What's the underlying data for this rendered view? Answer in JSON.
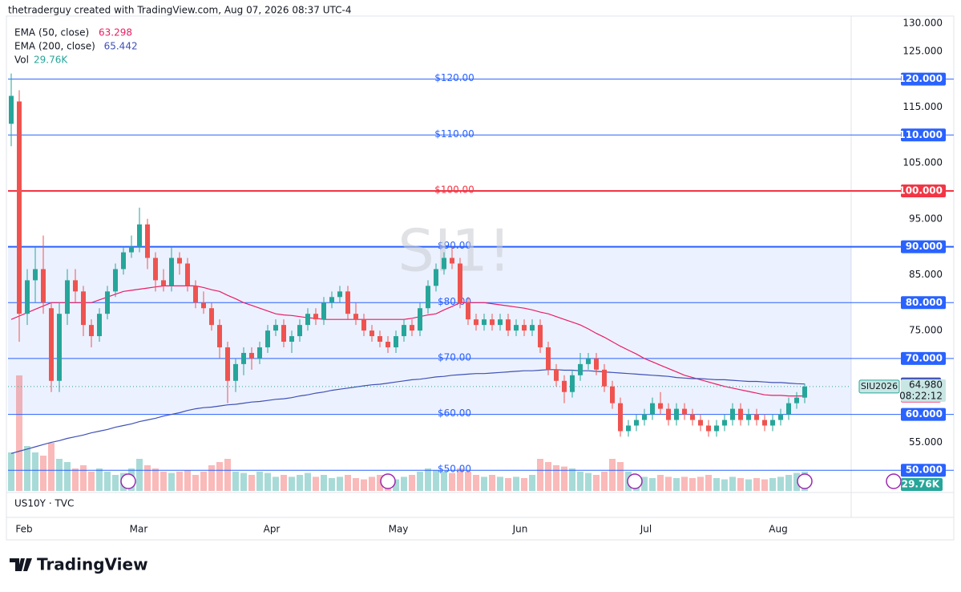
{
  "chart_data": {
    "type": "candlestick",
    "header": "thetraderguy created with TradingView.com, Aug 07, 2026 08:37 UTC-4",
    "title": "SI1!",
    "symbol": "SIU2026",
    "last_price_label": "64.980",
    "countdown": "08:22:12",
    "subpane": "US10Y · TVC",
    "brand": "TradingView",
    "up_color": "#26a69a",
    "down_color": "#ef5350",
    "ylim": [
      46.3,
      131
    ],
    "yticks": [
      {
        "value": 130,
        "label": "130.000"
      },
      {
        "value": 125,
        "label": "125.000"
      },
      {
        "value": 115,
        "label": "115.000"
      },
      {
        "value": 105,
        "label": "105.000"
      },
      {
        "value": 95,
        "label": "95.000"
      },
      {
        "value": 85,
        "label": "85.000"
      },
      {
        "value": 75,
        "label": "75.000"
      },
      {
        "value": 55,
        "label": "55.000"
      }
    ],
    "zone": [
      60,
      90
    ],
    "levels": [
      {
        "value": 120,
        "label": "$120.00",
        "axis_label": "120.000",
        "color": "#2962ff"
      },
      {
        "value": 110,
        "label": "$110.00",
        "axis_label": "110.000",
        "color": "#2962ff"
      },
      {
        "value": 100,
        "label": "$100.00",
        "axis_label": "100.000",
        "color": "#f23645"
      },
      {
        "value": 90,
        "label": "$90.00",
        "axis_label": "90.000",
        "color": "#2962ff"
      },
      {
        "value": 80,
        "label": "$80.00",
        "axis_label": "80.000",
        "color": "#2962ff"
      },
      {
        "value": 70,
        "label": "$70.00",
        "axis_label": "70.000",
        "color": "#2962ff"
      },
      {
        "value": 60,
        "label": "$60.00",
        "axis_label": "60.000",
        "color": "#2962ff"
      },
      {
        "value": 50,
        "label": "$50.00",
        "axis_label": "50.000",
        "color": "#2962ff"
      }
    ],
    "months": [
      "Feb",
      "Mar",
      "Apr",
      "May",
      "Jun",
      "Jul",
      "Aug"
    ],
    "candles": [
      [
        112,
        121,
        108,
        117
      ],
      [
        116,
        118,
        73,
        78
      ],
      [
        78,
        86,
        76,
        84
      ],
      [
        84,
        90,
        80,
        86
      ],
      [
        86,
        92,
        78,
        80
      ],
      [
        79,
        80,
        64,
        66
      ],
      [
        66,
        80,
        64,
        78
      ],
      [
        78,
        86,
        76,
        84
      ],
      [
        84,
        86,
        80,
        82
      ],
      [
        82,
        83,
        74,
        76
      ],
      [
        76,
        77,
        72,
        74
      ],
      [
        74,
        79,
        73,
        78
      ],
      [
        78,
        83,
        77,
        82
      ],
      [
        82,
        87,
        81,
        86
      ],
      [
        86,
        90,
        85,
        89
      ],
      [
        89,
        92,
        88,
        90
      ],
      [
        90,
        97,
        89,
        94
      ],
      [
        94,
        95,
        86,
        88
      ],
      [
        88,
        89,
        82,
        84
      ],
      [
        84,
        86,
        82,
        83
      ],
      [
        83,
        90,
        82,
        88
      ],
      [
        88,
        89,
        85,
        87
      ],
      [
        87,
        88,
        82,
        83
      ],
      [
        83,
        84,
        79,
        80
      ],
      [
        80,
        82,
        78,
        79
      ],
      [
        79,
        80,
        75,
        76
      ],
      [
        76,
        77,
        70,
        72
      ],
      [
        72,
        73,
        62,
        66
      ],
      [
        66,
        70,
        64,
        69
      ],
      [
        69,
        72,
        67,
        71
      ],
      [
        71,
        72,
        68,
        70
      ],
      [
        70,
        73,
        69,
        72
      ],
      [
        72,
        76,
        71,
        75
      ],
      [
        75,
        77,
        74,
        76
      ],
      [
        76,
        77,
        72,
        73
      ],
      [
        73,
        75,
        71,
        74
      ],
      [
        74,
        77,
        73,
        76
      ],
      [
        76,
        79,
        75,
        78
      ],
      [
        78,
        79,
        76,
        77
      ],
      [
        77,
        81,
        76,
        80
      ],
      [
        80,
        82,
        79,
        81
      ],
      [
        81,
        83,
        80,
        82
      ],
      [
        82,
        83,
        77,
        78
      ],
      [
        78,
        80,
        76,
        77
      ],
      [
        77,
        78,
        74,
        75
      ],
      [
        75,
        76,
        73,
        74
      ],
      [
        74,
        75,
        72,
        73
      ],
      [
        73,
        74,
        71,
        72
      ],
      [
        72,
        75,
        71,
        74
      ],
      [
        74,
        77,
        73,
        76
      ],
      [
        76,
        77,
        74,
        75
      ],
      [
        75,
        80,
        74,
        79
      ],
      [
        79,
        84,
        78,
        83
      ],
      [
        83,
        87,
        82,
        86
      ],
      [
        86,
        89,
        85,
        88
      ],
      [
        88,
        90,
        86,
        87
      ],
      [
        87,
        88,
        79,
        80
      ],
      [
        80,
        81,
        76,
        77
      ],
      [
        77,
        78,
        75,
        76
      ],
      [
        76,
        78,
        75,
        77
      ],
      [
        77,
        78,
        75,
        76
      ],
      [
        76,
        78,
        75,
        77
      ],
      [
        77,
        78,
        74,
        75
      ],
      [
        75,
        77,
        74,
        76
      ],
      [
        76,
        77,
        74,
        75
      ],
      [
        75,
        77,
        74,
        76
      ],
      [
        76,
        77,
        71,
        72
      ],
      [
        72,
        73,
        67,
        68
      ],
      [
        68,
        69,
        65,
        66
      ],
      [
        66,
        67,
        62,
        64
      ],
      [
        64,
        68,
        63,
        67
      ],
      [
        67,
        71,
        66,
        69
      ],
      [
        69,
        71,
        68,
        70
      ],
      [
        70,
        71,
        67,
        68
      ],
      [
        68,
        69,
        64,
        65
      ],
      [
        65,
        66,
        61,
        62
      ],
      [
        62,
        63,
        56,
        57
      ],
      [
        57,
        59,
        56,
        58
      ],
      [
        58,
        60,
        57,
        59
      ],
      [
        59,
        61,
        58,
        60
      ],
      [
        60,
        63,
        59,
        62
      ],
      [
        62,
        64,
        60,
        61
      ],
      [
        61,
        62,
        58,
        59
      ],
      [
        59,
        62,
        58,
        61
      ],
      [
        61,
        62,
        59,
        60
      ],
      [
        60,
        61,
        58,
        59
      ],
      [
        59,
        60,
        57,
        58
      ],
      [
        58,
        59,
        56,
        57
      ],
      [
        57,
        59,
        56,
        58
      ],
      [
        58,
        60,
        57,
        59
      ],
      [
        59,
        62,
        58,
        61
      ],
      [
        61,
        62,
        58,
        59
      ],
      [
        59,
        61,
        58,
        60
      ],
      [
        60,
        61,
        58,
        59
      ],
      [
        59,
        60,
        57,
        58
      ],
      [
        58,
        60,
        57,
        59
      ],
      [
        59,
        61,
        58,
        60
      ],
      [
        60,
        63,
        59,
        62
      ],
      [
        62,
        64,
        61,
        63
      ],
      [
        63,
        65.5,
        62,
        64.98
      ]
    ],
    "volume": {
      "name": "Vol",
      "label": "29.76K",
      "values": [
        60,
        180,
        70,
        60,
        55,
        75,
        50,
        45,
        35,
        40,
        30,
        35,
        30,
        25,
        28,
        35,
        50,
        40,
        35,
        30,
        28,
        30,
        32,
        25,
        30,
        40,
        45,
        50,
        30,
        28,
        25,
        30,
        28,
        22,
        25,
        22,
        25,
        28,
        22,
        25,
        20,
        22,
        25,
        20,
        18,
        22,
        25,
        20,
        18,
        22,
        25,
        30,
        35,
        32,
        30,
        28,
        35,
        30,
        25,
        22,
        25,
        22,
        20,
        22,
        20,
        25,
        50,
        45,
        40,
        38,
        35,
        30,
        28,
        25,
        30,
        50,
        45,
        30,
        25,
        22,
        20,
        25,
        22,
        20,
        22,
        20,
        22,
        25,
        20,
        18,
        22,
        20,
        18,
        20,
        18,
        20,
        22,
        25,
        28,
        29.76
      ]
    },
    "series": [
      {
        "name": "EMA (50, close)",
        "color": "#e91e63",
        "values": [
          77,
          77.6,
          78.2,
          78.8,
          79.4,
          80,
          80,
          80,
          80,
          80,
          80,
          80.5,
          81,
          81.5,
          82,
          82.2,
          82.4,
          82.6,
          82.8,
          83,
          83,
          83,
          83,
          83,
          82.7,
          82.3,
          82,
          81.3,
          80.7,
          80,
          79.5,
          79,
          78.5,
          78,
          77.8,
          77.7,
          77.5,
          77.3,
          77.2,
          77,
          77,
          77,
          77,
          77,
          77,
          77,
          77,
          77,
          77,
          77,
          77.2,
          77.5,
          77.8,
          78,
          78.7,
          79.3,
          80,
          80,
          80,
          80,
          79.8,
          79.6,
          79.4,
          79.2,
          79,
          78.7,
          78.3,
          78,
          77.5,
          77,
          76.5,
          76,
          75.3,
          74.5,
          73.8,
          73,
          72.2,
          71.5,
          70.8,
          70,
          69.4,
          68.8,
          68.2,
          67.6,
          67,
          66.6,
          66.2,
          65.8,
          65.4,
          65,
          64.7,
          64.4,
          64.1,
          63.8,
          63.5,
          63.4,
          63.4,
          63.3,
          63.3,
          63.298
        ]
      },
      {
        "name": "EMA (200, close)",
        "color": "#3f51b5",
        "values": [
          53,
          53.4,
          53.8,
          54.2,
          54.6,
          55,
          55.3,
          55.7,
          56,
          56.3,
          56.7,
          57,
          57.3,
          57.7,
          58,
          58.3,
          58.7,
          59,
          59.3,
          59.7,
          60,
          60.3,
          60.7,
          61,
          61.2,
          61.3,
          61.5,
          61.7,
          61.8,
          62,
          62.2,
          62.3,
          62.5,
          62.7,
          62.8,
          63,
          63.3,
          63.5,
          63.8,
          64,
          64.3,
          64.5,
          64.7,
          64.9,
          65.1,
          65.3,
          65.4,
          65.6,
          65.8,
          66,
          66.2,
          66.3,
          66.5,
          66.7,
          66.8,
          67,
          67.1,
          67.2,
          67.3,
          67.3,
          67.4,
          67.5,
          67.6,
          67.7,
          67.8,
          67.8,
          67.9,
          68,
          68,
          67.9,
          67.9,
          67.8,
          67.8,
          67.7,
          67.6,
          67.5,
          67.4,
          67.3,
          67.2,
          67.1,
          67,
          66.9,
          66.8,
          66.6,
          66.5,
          66.4,
          66.4,
          66.3,
          66.2,
          66.2,
          66.1,
          66,
          65.9,
          65.9,
          65.8,
          65.7,
          65.7,
          65.6,
          65.5,
          65.442
        ]
      }
    ]
  }
}
